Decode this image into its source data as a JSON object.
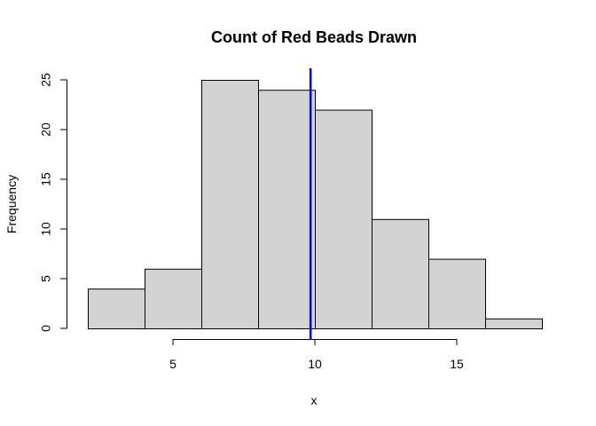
{
  "chart_data": {
    "type": "histogram",
    "title": "Count of Red Beads Drawn",
    "xlabel": "x",
    "ylabel": "Frequency",
    "bins": [
      {
        "start": 2,
        "end": 4,
        "count": 4
      },
      {
        "start": 4,
        "end": 6,
        "count": 6
      },
      {
        "start": 6,
        "end": 8,
        "count": 25
      },
      {
        "start": 8,
        "end": 10,
        "count": 24
      },
      {
        "start": 10,
        "end": 12,
        "count": 22
      },
      {
        "start": 12,
        "end": 14,
        "count": 11
      },
      {
        "start": 14,
        "end": 16,
        "count": 7
      },
      {
        "start": 16,
        "end": 18,
        "count": 1
      }
    ],
    "x_ticks": [
      5,
      10,
      15
    ],
    "y_ticks": [
      0,
      5,
      10,
      15,
      20,
      25
    ],
    "xlim": [
      2,
      18
    ],
    "ylim": [
      0,
      26
    ],
    "vline": {
      "x": 9.85,
      "color": "#0000ff"
    },
    "bar_fill": "#d3d3d3",
    "bar_stroke": "#000000",
    "grid": false
  }
}
